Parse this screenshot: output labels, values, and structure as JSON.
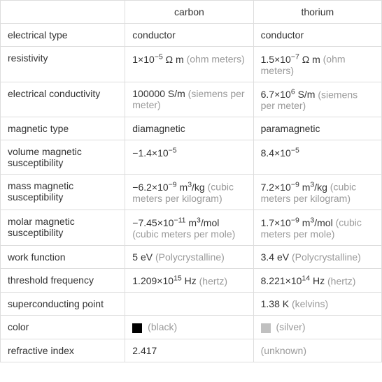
{
  "columns": {
    "label": "",
    "carbon": "carbon",
    "thorium": "thorium"
  },
  "rows": [
    {
      "label": "electrical type",
      "carbon": {
        "main": "conductor",
        "unit": ""
      },
      "thorium": {
        "main": "conductor",
        "unit": ""
      }
    },
    {
      "label": "resistivity",
      "carbon": {
        "main": "1×10<sup>−5</sup> Ω m",
        "unit": " (ohm meters)"
      },
      "thorium": {
        "main": "1.5×10<sup>−7</sup> Ω m",
        "unit": " (ohm meters)"
      }
    },
    {
      "label": "electrical conductivity",
      "carbon": {
        "main": "100000 S/m",
        "unit": " (siemens per meter)"
      },
      "thorium": {
        "main": "6.7×10<sup>6</sup> S/m",
        "unit": " (siemens per meter)"
      }
    },
    {
      "label": "magnetic type",
      "carbon": {
        "main": "diamagnetic",
        "unit": ""
      },
      "thorium": {
        "main": "paramagnetic",
        "unit": ""
      }
    },
    {
      "label": "volume magnetic susceptibility",
      "carbon": {
        "main": "−1.4×10<sup>−5</sup>",
        "unit": ""
      },
      "thorium": {
        "main": "8.4×10<sup>−5</sup>",
        "unit": ""
      }
    },
    {
      "label": "mass magnetic susceptibility",
      "carbon": {
        "main": "−6.2×10<sup>−9</sup> m<sup>3</sup>/kg",
        "unit": " (cubic meters per kilogram)"
      },
      "thorium": {
        "main": "7.2×10<sup>−9</sup> m<sup>3</sup>/kg",
        "unit": " (cubic meters per kilogram)"
      }
    },
    {
      "label": "molar magnetic susceptibility",
      "carbon": {
        "main": "−7.45×10<sup>−11</sup> m<sup>3</sup>/mol",
        "unit": " (cubic meters per mole)"
      },
      "thorium": {
        "main": "1.7×10<sup>−9</sup> m<sup>3</sup>/mol",
        "unit": " (cubic meters per mole)"
      }
    },
    {
      "label": "work function",
      "carbon": {
        "main": "5 eV",
        "unit": " (Polycrystalline)"
      },
      "thorium": {
        "main": "3.4 eV",
        "unit": " (Polycrystalline)"
      }
    },
    {
      "label": "threshold frequency",
      "carbon": {
        "main": "1.209×10<sup>15</sup> Hz",
        "unit": " (hertz)"
      },
      "thorium": {
        "main": "8.221×10<sup>14</sup> Hz",
        "unit": " (hertz)"
      }
    },
    {
      "label": "superconducting point",
      "carbon": {
        "main": "",
        "unit": ""
      },
      "thorium": {
        "main": "1.38 K",
        "unit": " (kelvins)"
      }
    },
    {
      "label": "color",
      "carbon": {
        "swatch": "#000000",
        "main": "",
        "unit": " (black)"
      },
      "thorium": {
        "swatch": "#c0c0c0",
        "main": "",
        "unit": " (silver)"
      }
    },
    {
      "label": "refractive index",
      "carbon": {
        "main": "2.417",
        "unit": ""
      },
      "thorium": {
        "main": "",
        "unit": "(unknown)"
      }
    }
  ],
  "colors": {
    "border": "#dddddd",
    "text_main": "#333333",
    "text_unit": "#999999"
  }
}
